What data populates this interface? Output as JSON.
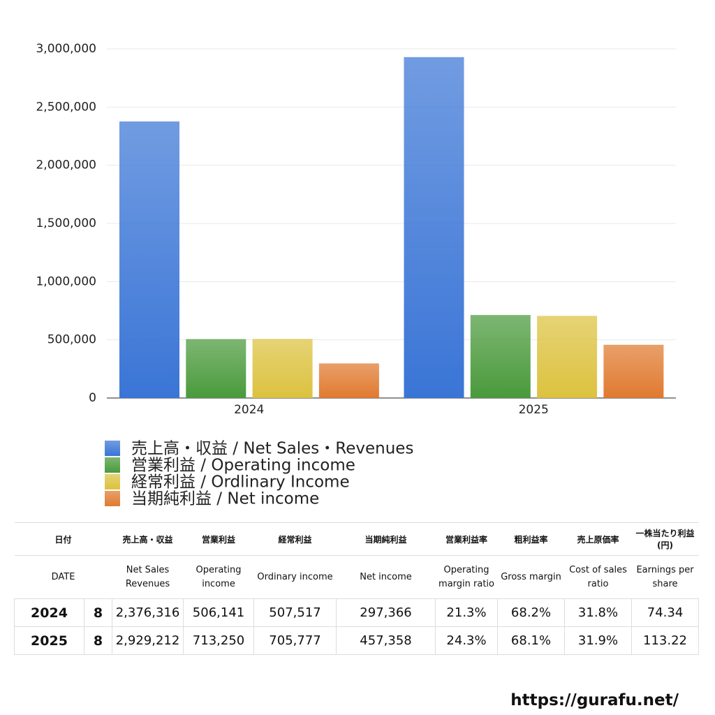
{
  "chart_data": {
    "type": "bar",
    "categories": [
      "2024",
      "2025"
    ],
    "series": [
      {
        "name": "売上高・収益 / Net Sales・Revenues",
        "color": "#3a75d6",
        "values": [
          2376316,
          2929212
        ]
      },
      {
        "name": "営業利益 / Operating income",
        "color": "#4a9a3c",
        "values": [
          506141,
          713250
        ]
      },
      {
        "name": "経常利益 / Ordlinary Income",
        "color": "#dcc23f",
        "values": [
          507517,
          705777
        ]
      },
      {
        "name": "当期純利益 / Net income",
        "color": "#e07a30",
        "values": [
          297366,
          457358
        ]
      }
    ],
    "ylim": [
      0,
      3000000
    ],
    "yticks": [
      0,
      {
        "value": 500000,
        "label": "500,000"
      },
      {
        "value": 1000000,
        "label": "1,000,000"
      },
      {
        "value": 1500000,
        "label": "1,500,000"
      },
      {
        "value": 2000000,
        "label": "2,000,000"
      },
      {
        "value": 2500000,
        "label": "2,500,000"
      },
      {
        "value": 3000000,
        "label": "3,000,000"
      }
    ],
    "grid": true
  },
  "table": {
    "header_ja": [
      "日付",
      "売上高・収益",
      "営業利益",
      "経常利益",
      "当期純利益",
      "営業利益率",
      "粗利益率",
      "売上原価率",
      "一株当たり利益(円)"
    ],
    "header_en": [
      "DATE",
      "Net Sales Revenues",
      "Operating income",
      "Ordinary income",
      "Net income",
      "Operating margin ratio",
      "Gross margin",
      "Cost of sales ratio",
      "Earnings per share"
    ],
    "rows": [
      [
        "2024",
        "8",
        "2,376,316",
        "506,141",
        "507,517",
        "297,366",
        "21.3%",
        "68.2%",
        "31.8%",
        "74.34"
      ],
      [
        "2025",
        "8",
        "2,929,212",
        "713,250",
        "705,777",
        "457,358",
        "24.3%",
        "68.1%",
        "31.9%",
        "113.22"
      ]
    ]
  },
  "footer": "https://gurafu.net/"
}
